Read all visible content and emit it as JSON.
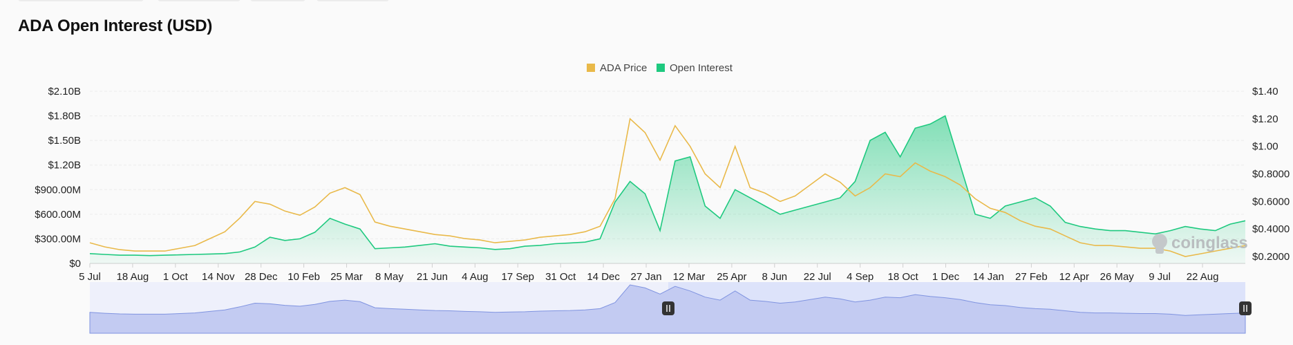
{
  "page": {
    "title": "ADA Open Interest (USD)",
    "watermark": "coinglass"
  },
  "chart_data": {
    "type": "area",
    "legend": {
      "position": "top-center",
      "items": [
        {
          "name": "ADA Price",
          "color": "#e9b949"
        },
        {
          "name": "Open Interest",
          "color": "#1ec97f"
        }
      ]
    },
    "x_ticks": [
      "5 Jul",
      "18 Aug",
      "1 Oct",
      "14 Nov",
      "28 Dec",
      "10 Feb",
      "25 Mar",
      "8 May",
      "21 Jun",
      "4 Aug",
      "17 Sep",
      "31 Oct",
      "14 Dec",
      "27 Jan",
      "12 Mar",
      "25 Apr",
      "8 Jun",
      "22 Jul",
      "4 Sep",
      "18 Oct",
      "1 Dec",
      "14 Jan",
      "27 Feb",
      "12 Apr",
      "26 May",
      "9 Jul",
      "22 Aug"
    ],
    "y_left": {
      "ticks": [
        "$0",
        "$300.00M",
        "$600.00M",
        "$900.00M",
        "$1.20B",
        "$1.50B",
        "$1.80B",
        "$2.10B"
      ],
      "range": [
        0,
        2100000000
      ]
    },
    "y_right": {
      "ticks": [
        "$0.2000",
        "$0.4000",
        "$0.6000",
        "$0.8000",
        "$1.00",
        "$1.20",
        "$1.40"
      ],
      "range": [
        0.15,
        1.4
      ]
    },
    "grid": true,
    "series": [
      {
        "name": "Open Interest",
        "axis": "left",
        "color": "#1ec97f",
        "values": [
          120,
          110,
          100,
          100,
          95,
          100,
          105,
          110,
          115,
          120,
          140,
          200,
          320,
          280,
          300,
          380,
          550,
          480,
          420,
          180,
          190,
          200,
          220,
          240,
          210,
          200,
          190,
          170,
          180,
          210,
          220,
          240,
          250,
          260,
          300,
          750,
          1000,
          850,
          400,
          1250,
          1300,
          700,
          550,
          900,
          800,
          700,
          600,
          650,
          700,
          750,
          800,
          1000,
          1500,
          1600,
          1300,
          1650,
          1700,
          1800,
          1200,
          600,
          550,
          700,
          750,
          800,
          700,
          500,
          450,
          420,
          400,
          400,
          380,
          360,
          400,
          450,
          420,
          400,
          480,
          520
        ]
      },
      {
        "name": "ADA Price",
        "axis": "right",
        "color": "#e9b949",
        "values": [
          0.3,
          0.27,
          0.25,
          0.24,
          0.24,
          0.24,
          0.26,
          0.28,
          0.33,
          0.38,
          0.48,
          0.6,
          0.58,
          0.53,
          0.5,
          0.56,
          0.66,
          0.7,
          0.65,
          0.45,
          0.42,
          0.4,
          0.38,
          0.36,
          0.35,
          0.33,
          0.32,
          0.3,
          0.31,
          0.32,
          0.34,
          0.35,
          0.36,
          0.38,
          0.42,
          0.62,
          1.2,
          1.1,
          0.9,
          1.15,
          1.0,
          0.8,
          0.7,
          1.0,
          0.7,
          0.66,
          0.6,
          0.64,
          0.72,
          0.8,
          0.74,
          0.64,
          0.7,
          0.8,
          0.78,
          0.88,
          0.82,
          0.78,
          0.72,
          0.62,
          0.55,
          0.52,
          0.46,
          0.42,
          0.4,
          0.35,
          0.3,
          0.28,
          0.28,
          0.27,
          0.26,
          0.26,
          0.24,
          0.2,
          0.22,
          0.24,
          0.26,
          0.28
        ]
      }
    ],
    "navigator": {
      "selected_range": "12 Mar - 22 Aug"
    }
  }
}
